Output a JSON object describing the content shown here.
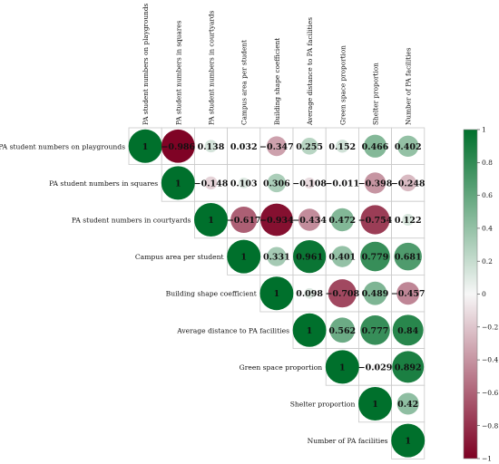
{
  "chart_data": {
    "type": "heatmap",
    "subtype": "correlation-matrix-upper-triangle",
    "variables": [
      "PA student numbers on playgrounds",
      "PA student numbers  in squares",
      "PA student numbers in courtyards",
      "Campus area per student",
      "Building shape coefficient",
      "Average distance to PA facilities",
      "Green space proportion",
      "Shelter proportion",
      "Number of PA facilities"
    ],
    "matrix": [
      [
        1,
        -0.986,
        0.138,
        0.032,
        -0.347,
        0.255,
        0.152,
        0.466,
        0.402
      ],
      [
        null,
        1,
        -0.148,
        0.103,
        0.306,
        -0.108,
        -0.011,
        -0.398,
        -0.248
      ],
      [
        null,
        null,
        1,
        -0.617,
        -0.934,
        -0.434,
        0.472,
        -0.754,
        0.122
      ],
      [
        null,
        null,
        null,
        1,
        0.331,
        0.961,
        0.401,
        0.779,
        0.681
      ],
      [
        null,
        null,
        null,
        null,
        1,
        0.098,
        -0.708,
        0.489,
        -0.457
      ],
      [
        null,
        null,
        null,
        null,
        null,
        1,
        0.562,
        0.777,
        0.84
      ],
      [
        null,
        null,
        null,
        null,
        null,
        null,
        1,
        -0.029,
        0.892
      ],
      [
        null,
        null,
        null,
        null,
        null,
        null,
        null,
        1,
        0.42
      ],
      [
        null,
        null,
        null,
        null,
        null,
        null,
        null,
        null,
        1
      ]
    ],
    "labels": [
      [
        "1",
        "−0.986",
        "0.138",
        "0.032",
        "−0.347",
        "0.255",
        "0.152",
        "0.466",
        "0.402"
      ],
      [
        null,
        "1",
        "−0.148",
        "0.103",
        "0.306",
        "−0.108",
        "−0.011",
        "−0.398",
        "−0.248"
      ],
      [
        null,
        null,
        "1",
        "−0.617",
        "−0.934",
        "−0.434",
        "0.472",
        "−0.754",
        "0.122"
      ],
      [
        null,
        null,
        null,
        "1",
        "0.331",
        "0.961",
        "0.401",
        "0.779",
        "0.681"
      ],
      [
        null,
        null,
        null,
        null,
        "1",
        "0.098",
        "−0.708",
        "0.489",
        "−0.457"
      ],
      [
        null,
        null,
        null,
        null,
        null,
        "1",
        "0.562",
        "0.777",
        "0.84"
      ],
      [
        null,
        null,
        null,
        null,
        null,
        null,
        "1",
        "−0.029",
        "0.892"
      ],
      [
        null,
        null,
        null,
        null,
        null,
        null,
        null,
        "1",
        "0.42"
      ],
      [
        null,
        null,
        null,
        null,
        null,
        null,
        null,
        null,
        "1"
      ]
    ],
    "vrange": [
      -1,
      1
    ],
    "colorbar": {
      "ticks": [
        "1",
        "0.8",
        "0.6",
        "0.4",
        "0.2",
        "0",
        "−0.2",
        "−0.4",
        "−0.6",
        "−0.8",
        "−1"
      ],
      "tick_values": [
        1,
        0.8,
        0.6,
        0.4,
        0.2,
        0,
        -0.2,
        -0.4,
        -0.6,
        -0.8,
        -1
      ],
      "placement": "right"
    },
    "colors": {
      "positive": "#00702c",
      "neutral": "#f7f7f7",
      "negative": "#7d0022"
    }
  }
}
